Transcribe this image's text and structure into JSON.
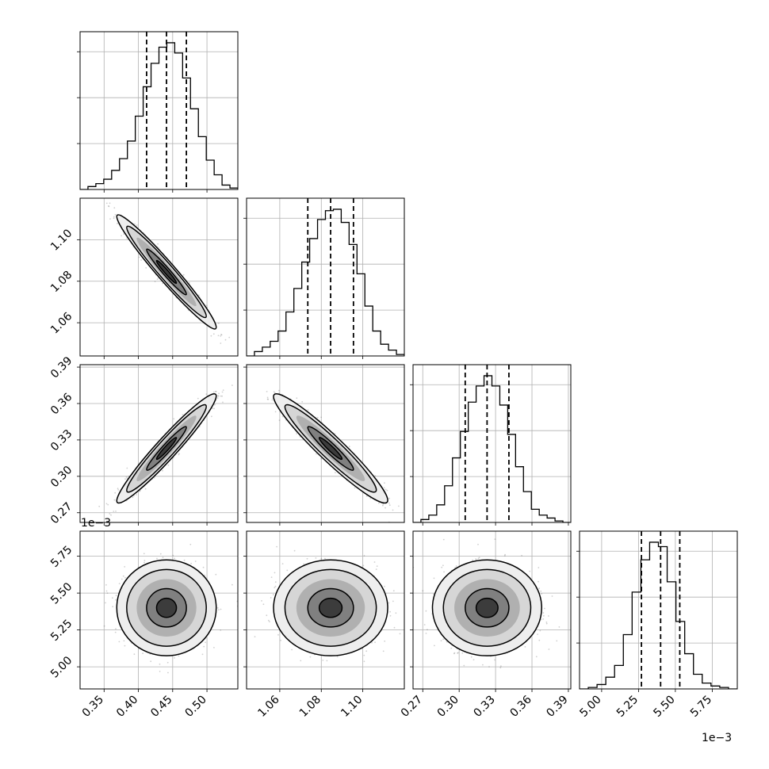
{
  "chart_data": {
    "type": "corner",
    "parameters": [
      {
        "ticks": [
          0.35,
          0.4,
          0.45,
          0.5
        ],
        "tick_labels": [
          "0.35",
          "0.40",
          "0.45",
          "0.50"
        ],
        "range": [
          0.315,
          0.545
        ],
        "median": 0.441,
        "q16": 0.412,
        "q84": 0.47,
        "hist": [
          0.0,
          0.02,
          0.04,
          0.07,
          0.13,
          0.21,
          0.33,
          0.5,
          0.7,
          0.86,
          0.97,
          1.0,
          0.93,
          0.76,
          0.55,
          0.36,
          0.2,
          0.1,
          0.03,
          0.01
        ]
      },
      {
        "ticks": [
          1.06,
          1.08,
          1.1
        ],
        "tick_labels": [
          "1.06",
          "1.08",
          "1.10"
        ],
        "range": [
          1.044,
          1.12
        ],
        "median": 1.0845,
        "q16": 1.0735,
        "q84": 1.0955,
        "hist": [
          0.0,
          0.03,
          0.06,
          0.1,
          0.17,
          0.3,
          0.46,
          0.64,
          0.8,
          0.93,
          0.99,
          1.0,
          0.91,
          0.76,
          0.56,
          0.34,
          0.17,
          0.08,
          0.04,
          0.01
        ]
      },
      {
        "ticks": [
          0.27,
          0.3,
          0.33,
          0.36,
          0.39
        ],
        "tick_labels": [
          "0.27",
          "0.30",
          "0.33",
          "0.36",
          "0.39"
        ],
        "range": [
          0.262,
          0.392
        ],
        "median": 0.323,
        "q16": 0.305,
        "q84": 0.341,
        "hist": [
          0.0,
          0.02,
          0.05,
          0.12,
          0.25,
          0.44,
          0.62,
          0.82,
          0.93,
          1.0,
          0.93,
          0.8,
          0.6,
          0.38,
          0.21,
          0.09,
          0.05,
          0.03,
          0.01,
          0.0
        ]
      },
      {
        "ticks": [
          0.005,
          0.00525,
          0.0055,
          0.00575
        ],
        "tick_labels": [
          "5.00",
          "5.25",
          "5.50",
          "5.75"
        ],
        "range": [
          0.00485,
          0.00592
        ],
        "median": 0.0054,
        "q16": 0.00527,
        "q84": 0.00553,
        "hist": [
          0.0,
          0.01,
          0.03,
          0.08,
          0.16,
          0.37,
          0.66,
          0.88,
          1.0,
          0.97,
          0.73,
          0.46,
          0.24,
          0.1,
          0.04,
          0.02,
          0.01,
          0.0
        ],
        "offset_label": "1e−3"
      }
    ],
    "correlations": {
      "1-0": -0.97,
      "2-0": 0.96,
      "2-1": -0.95,
      "3-0": 0.0,
      "3-1": 0.0,
      "3-2": 0.0
    },
    "grid": true
  }
}
